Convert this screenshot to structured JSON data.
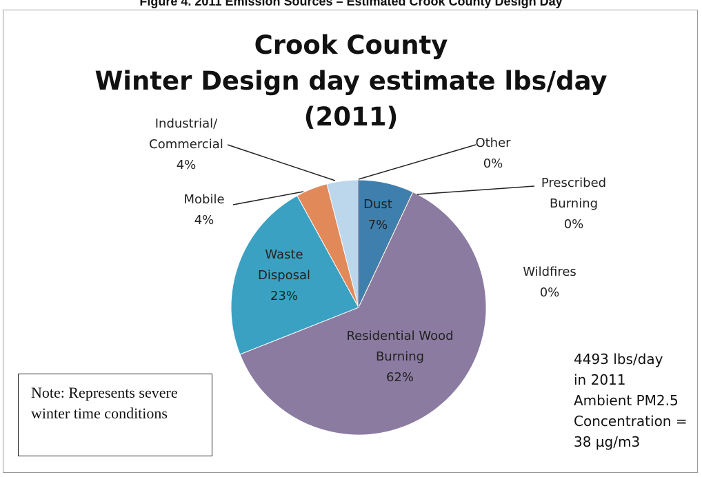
{
  "caption": "Figure 4. 2011 Emission Sources – Estimated Crook County Design Day",
  "chart_data": {
    "type": "pie",
    "title": [
      "Crook County",
      "Winter Design day estimate lbs/day",
      "(2011)"
    ],
    "categories": [
      "Dust",
      "Prescribed Burning",
      "Wildfires",
      "Residential Wood Burning",
      "Waste Disposal",
      "Mobile",
      "Industrial/ Commercial",
      "Other"
    ],
    "values": [
      7,
      0,
      0,
      62,
      23,
      4,
      4,
      0
    ],
    "value_labels": [
      "7%",
      "0%",
      "0%",
      "62%",
      "23%",
      "4%",
      "4%",
      "0%"
    ],
    "colors": [
      "#3f7fae",
      "#a24a86",
      "#9aa84a",
      "#8b7ba0",
      "#3ba1c2",
      "#e2895a",
      "#bcd6ec",
      "#7f8fa8"
    ],
    "annotations": {
      "note": "Note:  Represents severe winter time conditions",
      "summary": [
        "4493 lbs/day",
        "in 2011",
        "Ambient PM2.5",
        "Concentration =",
        "38 µg/m3"
      ]
    }
  }
}
